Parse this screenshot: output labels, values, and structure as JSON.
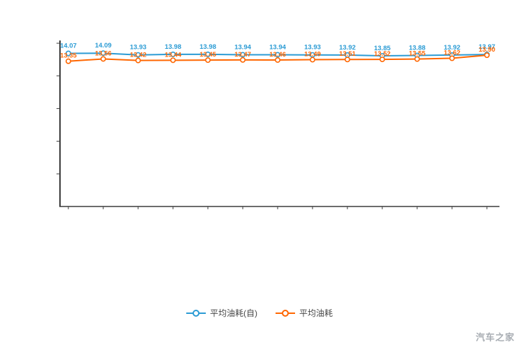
{
  "chart_data": {
    "type": "line",
    "title": "",
    "xlabel": "",
    "ylabel": "",
    "ylim": [
      0,
      15
    ],
    "grid": false,
    "legend_position": "bottom",
    "marker_style": "open-circle",
    "show_point_labels": true,
    "series": [
      {
        "name": "平均油耗(自)",
        "color": "#2b9bd4",
        "values": [
          14.07,
          14.09,
          13.93,
          13.98,
          13.98,
          13.94,
          13.94,
          13.93,
          13.92,
          13.85,
          13.88,
          13.92,
          13.97
        ]
      },
      {
        "name": "平均油耗",
        "color": "#ff6600",
        "values": [
          13.35,
          13.56,
          13.42,
          13.44,
          13.45,
          13.47,
          13.46,
          13.49,
          13.51,
          13.52,
          13.55,
          13.62,
          13.9
        ]
      }
    ]
  },
  "watermark": "汽车之家"
}
